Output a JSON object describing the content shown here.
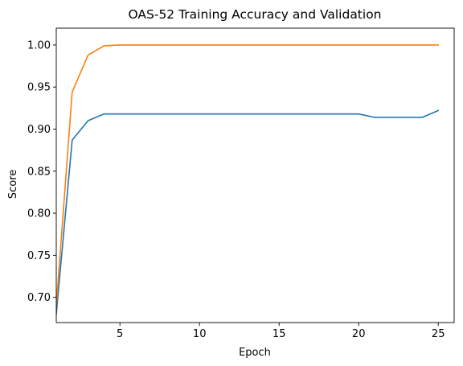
{
  "chart_data": {
    "type": "line",
    "title": "OAS-52 Training Accuracy and Validation",
    "xlabel": "Epoch",
    "ylabel": "Score",
    "xlim": [
      1,
      26
    ],
    "ylim": [
      0.67,
      1.02
    ],
    "xticks": [
      5,
      10,
      15,
      20,
      25
    ],
    "yticks": [
      0.7,
      0.75,
      0.8,
      0.85,
      0.9,
      0.95,
      1.0
    ],
    "xtick_labels": [
      "5",
      "10",
      "15",
      "20",
      "25"
    ],
    "ytick_labels": [
      "0.70",
      "0.75",
      "0.80",
      "0.85",
      "0.90",
      "0.95",
      "1.00"
    ],
    "grid": false,
    "legend": "none",
    "x": [
      1,
      2,
      3,
      4,
      5,
      6,
      7,
      8,
      9,
      10,
      11,
      12,
      13,
      14,
      15,
      16,
      17,
      18,
      19,
      20,
      21,
      22,
      23,
      24,
      25
    ],
    "series": [
      {
        "color": "#1f77b4",
        "values": [
          0.68,
          0.887,
          0.91,
          0.918,
          0.918,
          0.918,
          0.918,
          0.918,
          0.918,
          0.918,
          0.918,
          0.918,
          0.918,
          0.918,
          0.918,
          0.918,
          0.918,
          0.918,
          0.918,
          0.918,
          0.914,
          0.914,
          0.914,
          0.914,
          0.922
        ]
      },
      {
        "color": "#ff7f0e",
        "values": [
          0.69,
          0.944,
          0.988,
          0.999,
          1.0,
          1.0,
          1.0,
          1.0,
          1.0,
          1.0,
          1.0,
          1.0,
          1.0,
          1.0,
          1.0,
          1.0,
          1.0,
          1.0,
          1.0,
          1.0,
          1.0,
          1.0,
          1.0,
          1.0,
          1.0
        ]
      }
    ]
  }
}
